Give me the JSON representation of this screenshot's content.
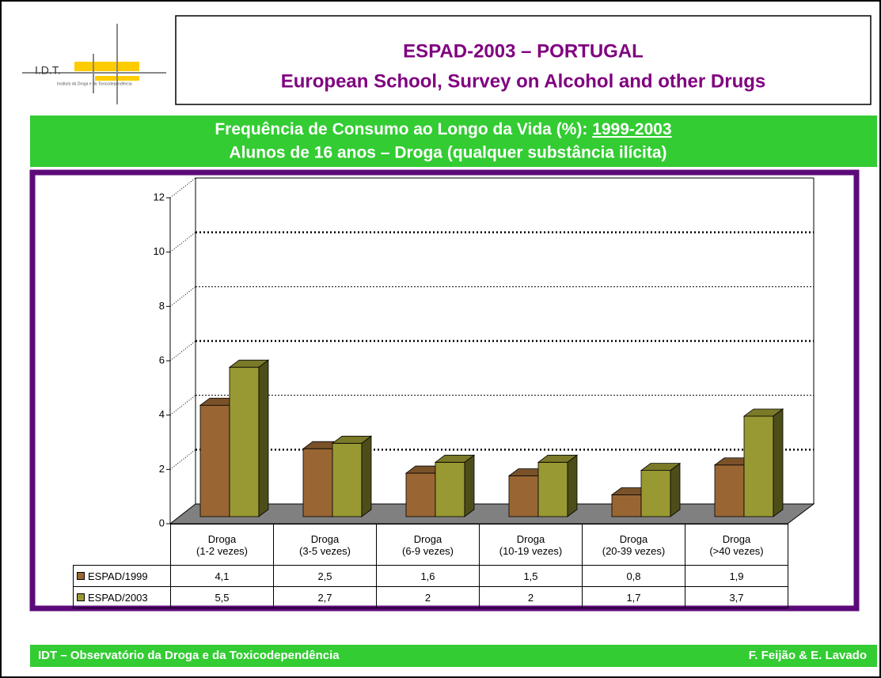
{
  "logo": {
    "acronym": "I.D.T.",
    "name": "Instituto da Droga e da Toxicodependência"
  },
  "header": {
    "title": [
      "ESPAD-2003 – PORTUGAL",
      "European School, Survey on Alcohol and other Drugs"
    ]
  },
  "banner": {
    "subtitle": "Frequência de Consumo ao Longo da Vida (%): ",
    "period": "1999-2003",
    "line2": "Alunos de 16 anos –  Droga (qualquer substância ilícita)"
  },
  "chart_data": {
    "type": "bar",
    "categories": [
      "Droga\n(1-2 vezes)",
      "Droga\n(3-5 vezes)",
      "Droga\n(6-9 vezes)",
      "Droga\n(10-19 vezes)",
      "Droga\n(20-39 vezes)",
      "Droga\n(>40 vezes)"
    ],
    "series": [
      {
        "name": "ESPAD/1999",
        "color": "#996633",
        "values": [
          4.1,
          2.5,
          1.6,
          1.5,
          0.8,
          1.9
        ],
        "value_labels": [
          "4,1",
          "2,5",
          "1,6",
          "1,5",
          "0,8",
          "1,9"
        ]
      },
      {
        "name": "ESPAD/2003",
        "color": "#999933",
        "values": [
          5.5,
          2.7,
          2,
          2,
          1.7,
          3.7
        ],
        "value_labels": [
          "5,5",
          "2,7",
          "2",
          "2",
          "1,7",
          "3,7"
        ]
      }
    ],
    "ylim": [
      0,
      12
    ],
    "yticks": [
      0,
      2,
      4,
      6,
      8,
      10,
      12
    ],
    "grid": true
  },
  "footer": {
    "left": "IDT – Observatório da Droga e da Toxicodependência",
    "right": "F. Feijão & E. Lavado"
  }
}
